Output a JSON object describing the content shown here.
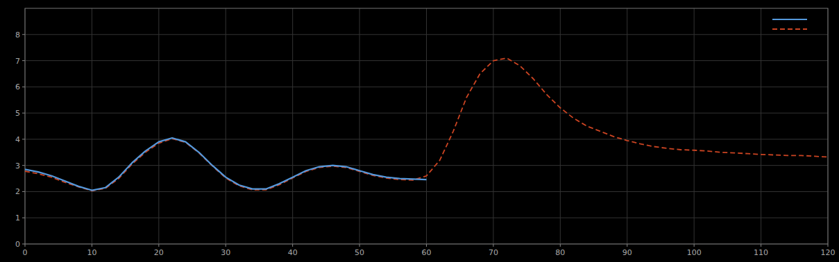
{
  "chart_data": {
    "type": "line",
    "series": [
      {
        "color": "#cc4422",
        "line_style": "dashed",
        "x": [
          0,
          2,
          4,
          6,
          8,
          10,
          12,
          14,
          16,
          18,
          20,
          22,
          24,
          26,
          28,
          30,
          32,
          34,
          36,
          38,
          40,
          42,
          44,
          46,
          48,
          50,
          52,
          54,
          56,
          58,
          60,
          62,
          64,
          66,
          68,
          70,
          72,
          74,
          76,
          78,
          80,
          82,
          84,
          86,
          88,
          90,
          92,
          94,
          96,
          98,
          100,
          102,
          104,
          106,
          108,
          110,
          112,
          114,
          116,
          118,
          120
        ],
        "values": [
          2.78,
          2.68,
          2.55,
          2.35,
          2.18,
          2.03,
          2.12,
          2.5,
          3.05,
          3.5,
          3.85,
          4.02,
          3.88,
          3.48,
          2.98,
          2.52,
          2.22,
          2.07,
          2.07,
          2.26,
          2.52,
          2.77,
          2.92,
          2.97,
          2.92,
          2.77,
          2.62,
          2.52,
          2.46,
          2.44,
          2.6,
          3.2,
          4.3,
          5.6,
          6.5,
          7.0,
          7.1,
          6.8,
          6.3,
          5.7,
          5.2,
          4.8,
          4.5,
          4.3,
          4.1,
          3.95,
          3.82,
          3.72,
          3.65,
          3.6,
          3.58,
          3.55,
          3.5,
          3.48,
          3.45,
          3.42,
          3.4,
          3.38,
          3.38,
          3.35,
          3.32
        ]
      },
      {
        "color": "#5599dd",
        "line_style": "solid",
        "x": [
          0,
          2,
          4,
          6,
          8,
          10,
          12,
          14,
          16,
          18,
          20,
          22,
          24,
          26,
          28,
          30,
          32,
          34,
          36,
          38,
          40,
          42,
          44,
          46,
          48,
          50,
          52,
          54,
          56,
          58,
          60
        ],
        "values": [
          2.85,
          2.75,
          2.6,
          2.4,
          2.2,
          2.05,
          2.15,
          2.55,
          3.1,
          3.55,
          3.9,
          4.05,
          3.9,
          3.5,
          3.0,
          2.55,
          2.25,
          2.1,
          2.1,
          2.3,
          2.55,
          2.8,
          2.95,
          3.0,
          2.95,
          2.8,
          2.65,
          2.55,
          2.5,
          2.48,
          2.46
        ]
      }
    ],
    "xlim": [
      0,
      120
    ],
    "ylim": [
      0,
      9
    ],
    "xticks": [
      0,
      10,
      20,
      30,
      40,
      50,
      60,
      70,
      80,
      90,
      100,
      110,
      120
    ],
    "yticks": [
      0,
      1,
      2,
      3,
      4,
      5,
      6,
      7,
      8
    ],
    "grid": true,
    "legend": "upper right"
  }
}
